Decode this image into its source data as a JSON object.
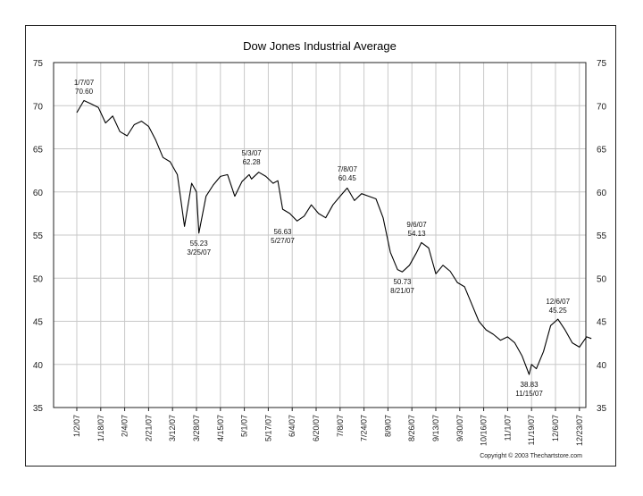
{
  "chart_data": {
    "type": "line",
    "title": "Dow Jones Industrial Average",
    "xlabel": "",
    "ylabel": "",
    "ylim": [
      35,
      75
    ],
    "yticks": [
      35,
      40,
      45,
      50,
      55,
      60,
      65,
      70,
      75
    ],
    "grid": true,
    "x_tick_labels": [
      "1/2/07",
      "1/18/07",
      "2/4/07",
      "2/21/07",
      "3/12/07",
      "3/28/07",
      "4/15/07",
      "5/1/07",
      "5/17/07",
      "6/4/07",
      "6/20/07",
      "7/8/07",
      "7/24/07",
      "8/9/07",
      "8/26/07",
      "9/13/07",
      "9/30/07",
      "10/16/07",
      "11/1/07",
      "11/19/07",
      "12/6/07",
      "12/23/07"
    ],
    "series": [
      {
        "name": "Dow Jones Industrial Average",
        "x": [
          0,
          0.3,
          0.6,
          0.9,
          1.2,
          1.5,
          1.8,
          2.1,
          2.4,
          2.7,
          3.0,
          3.3,
          3.6,
          3.9,
          4.2,
          4.5,
          4.8,
          5.0,
          5.1,
          5.4,
          5.7,
          6.0,
          6.3,
          6.6,
          6.9,
          7.2,
          7.3,
          7.6,
          7.9,
          8.2,
          8.4,
          8.6,
          8.9,
          9.2,
          9.5,
          9.8,
          10.1,
          10.4,
          10.7,
          11.0,
          11.3,
          11.6,
          11.9,
          12.2,
          12.5,
          12.8,
          13.1,
          13.4,
          13.6,
          13.9,
          14.2,
          14.4,
          14.7,
          15.0,
          15.3,
          15.6,
          15.9,
          16.2,
          16.5,
          16.8,
          17.1,
          17.4,
          17.7,
          18.0,
          18.3,
          18.6,
          18.9,
          19.0,
          19.2,
          19.5,
          19.8,
          20.1,
          20.4,
          20.7,
          21.0,
          21.3,
          21.5
        ],
        "values": [
          69.2,
          70.6,
          70.2,
          69.8,
          68.0,
          68.8,
          67.0,
          66.5,
          67.8,
          68.2,
          67.6,
          66.0,
          64.0,
          63.5,
          62.0,
          56.0,
          61.0,
          60.0,
          55.23,
          59.5,
          60.8,
          61.8,
          62.0,
          59.5,
          61.2,
          62.0,
          61.5,
          62.28,
          61.8,
          61.0,
          61.3,
          58.0,
          57.5,
          56.63,
          57.2,
          58.5,
          57.5,
          57.0,
          58.5,
          59.5,
          60.45,
          59.0,
          59.8,
          59.5,
          59.2,
          57.0,
          53.0,
          51.0,
          50.73,
          51.5,
          53.0,
          54.13,
          53.5,
          50.5,
          51.5,
          50.8,
          49.5,
          49.0,
          47.0,
          45.0,
          44.0,
          43.5,
          42.8,
          43.2,
          42.5,
          41.0,
          38.83,
          40.0,
          39.5,
          41.5,
          44.5,
          45.25,
          44.0,
          42.5,
          42.0,
          43.2,
          43.0
        ]
      }
    ],
    "annotations": [
      {
        "date": "1/7/07",
        "value": "70.60"
      },
      {
        "date": "3/25/07",
        "value": "55.23"
      },
      {
        "date": "5/3/07",
        "value": "62.28"
      },
      {
        "date": "5/27/07",
        "value": "56.63"
      },
      {
        "date": "7/8/07",
        "value": "60.45"
      },
      {
        "date": "8/21/07",
        "value": "50.73"
      },
      {
        "date": "9/6/07",
        "value": "54.13"
      },
      {
        "date": "11/15/07",
        "value": "38.83"
      },
      {
        "date": "12/6/07",
        "value": "45.25"
      }
    ]
  },
  "copyright": "Copyright © 2003 Thechartstore.com",
  "colors": {
    "line": "#000000",
    "grid": "#c8c8c8",
    "frame": "#222222"
  }
}
